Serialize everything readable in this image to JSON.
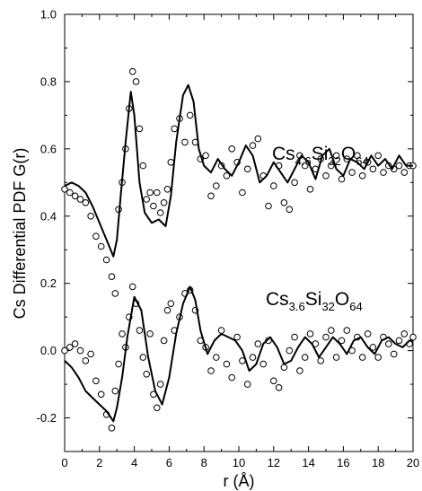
{
  "chart_data": {
    "type": "scatter",
    "title": "",
    "xlabel": "r (Å)",
    "ylabel": "Cs Differential PDF G(r)",
    "xlim": [
      0,
      20
    ],
    "ylim": [
      -0.3,
      1.0
    ],
    "xticks": [
      0,
      2,
      4,
      6,
      8,
      10,
      12,
      14,
      16,
      18,
      20
    ],
    "yticks": [
      -0.2,
      0.0,
      0.2,
      0.4,
      0.6,
      0.8,
      1.0
    ],
    "ytick_labels": [
      "-0.2",
      "0.0",
      "0.2",
      "0.4",
      "0.6",
      "0.8",
      "1.0"
    ],
    "grid": false,
    "legend": "none",
    "annotations": [
      {
        "base": "Cs",
        "sub1": "4.6",
        "mid": "Si",
        "sub2": "32",
        "end": "O",
        "sub3": "64"
      },
      {
        "base": "Cs",
        "sub1": "3.6",
        "mid": "Si",
        "sub2": "32",
        "end": "O",
        "sub3": "64"
      }
    ],
    "series": [
      {
        "style": "open-circles",
        "x": [
          0.0,
          0.3,
          0.6,
          0.9,
          1.2,
          1.5,
          1.8,
          2.1,
          2.4,
          2.7,
          2.9,
          3.1,
          3.3,
          3.5,
          3.7,
          3.9,
          4.1,
          4.3,
          4.5,
          4.7,
          4.9,
          5.1,
          5.3,
          5.5,
          5.7,
          5.9,
          6.1,
          6.3,
          6.6,
          6.9,
          7.2,
          7.5,
          7.8,
          8.1,
          8.4,
          8.7,
          9.0,
          9.3,
          9.6,
          9.9,
          10.2,
          10.5,
          10.8,
          11.1,
          11.4,
          11.7,
          12.0,
          12.3,
          12.6,
          12.9,
          13.2,
          13.5,
          13.8,
          14.1,
          14.4,
          14.7,
          15.0,
          15.3,
          15.6,
          15.9,
          16.2,
          16.5,
          16.8,
          17.1,
          17.4,
          17.7,
          18.0,
          18.3,
          18.6,
          18.9,
          19.2,
          19.5,
          19.8,
          20.0
        ],
        "y": [
          0.48,
          0.47,
          0.46,
          0.45,
          0.44,
          0.4,
          0.34,
          0.31,
          0.27,
          0.22,
          0.17,
          0.42,
          0.5,
          0.6,
          0.72,
          0.83,
          0.8,
          0.66,
          0.55,
          0.45,
          0.47,
          0.43,
          0.47,
          0.41,
          0.44,
          0.48,
          0.56,
          0.66,
          0.69,
          0.62,
          0.7,
          0.62,
          0.57,
          0.58,
          0.46,
          0.49,
          0.55,
          0.52,
          0.6,
          0.56,
          0.47,
          0.54,
          0.61,
          0.63,
          0.52,
          0.43,
          0.49,
          0.55,
          0.44,
          0.42,
          0.5,
          0.58,
          0.55,
          0.48,
          0.54,
          0.57,
          0.52,
          0.55,
          0.58,
          0.51,
          0.57,
          0.53,
          0.58,
          0.52,
          0.56,
          0.54,
          0.58,
          0.53,
          0.55,
          0.54,
          0.55,
          0.53,
          0.55,
          0.55
        ]
      },
      {
        "style": "solid-line",
        "x": [
          0.0,
          0.4,
          0.8,
          1.2,
          1.6,
          2.0,
          2.4,
          2.8,
          3.0,
          3.2,
          3.5,
          3.8,
          4.0,
          4.3,
          4.6,
          5.0,
          5.4,
          5.8,
          6.1,
          6.4,
          6.8,
          7.1,
          7.4,
          7.7,
          8.0,
          8.4,
          8.8,
          9.2,
          9.6,
          10.0,
          10.4,
          10.8,
          11.2,
          11.6,
          12.0,
          12.4,
          12.8,
          13.2,
          13.6,
          14.0,
          14.4,
          14.8,
          15.2,
          15.6,
          16.0,
          16.4,
          16.8,
          17.2,
          17.6,
          18.0,
          18.4,
          18.8,
          19.2,
          19.6,
          20.0
        ],
        "y": [
          0.49,
          0.5,
          0.49,
          0.47,
          0.43,
          0.38,
          0.33,
          0.28,
          0.33,
          0.45,
          0.62,
          0.77,
          0.7,
          0.5,
          0.41,
          0.38,
          0.39,
          0.37,
          0.46,
          0.62,
          0.76,
          0.79,
          0.74,
          0.6,
          0.55,
          0.53,
          0.57,
          0.54,
          0.52,
          0.56,
          0.61,
          0.58,
          0.5,
          0.52,
          0.56,
          0.53,
          0.5,
          0.54,
          0.58,
          0.56,
          0.51,
          0.58,
          0.6,
          0.54,
          0.52,
          0.57,
          0.56,
          0.54,
          0.58,
          0.55,
          0.57,
          0.54,
          0.58,
          0.55,
          0.55
        ]
      },
      {
        "style": "open-circles",
        "x": [
          0.0,
          0.3,
          0.6,
          0.9,
          1.2,
          1.5,
          1.8,
          2.1,
          2.4,
          2.7,
          2.9,
          3.1,
          3.3,
          3.5,
          3.7,
          3.9,
          4.1,
          4.3,
          4.5,
          4.7,
          4.9,
          5.1,
          5.3,
          5.5,
          5.7,
          5.9,
          6.1,
          6.3,
          6.6,
          6.9,
          7.2,
          7.5,
          7.8,
          8.1,
          8.4,
          8.7,
          9.0,
          9.3,
          9.6,
          9.9,
          10.2,
          10.5,
          10.8,
          11.1,
          11.4,
          11.7,
          12.0,
          12.3,
          12.6,
          12.9,
          13.2,
          13.5,
          13.8,
          14.1,
          14.4,
          14.7,
          15.0,
          15.3,
          15.6,
          15.9,
          16.2,
          16.5,
          16.8,
          17.1,
          17.4,
          17.7,
          18.0,
          18.3,
          18.6,
          18.9,
          19.2,
          19.5,
          19.8,
          20.0
        ],
        "y": [
          0.0,
          0.01,
          0.02,
          0.0,
          -0.03,
          -0.01,
          -0.09,
          -0.13,
          -0.19,
          -0.23,
          -0.12,
          -0.04,
          0.05,
          0.01,
          0.1,
          0.19,
          0.14,
          0.06,
          -0.02,
          -0.07,
          0.05,
          -0.13,
          -0.17,
          -0.1,
          0.03,
          0.12,
          0.14,
          0.06,
          0.1,
          0.17,
          0.18,
          0.12,
          0.03,
          0.01,
          -0.06,
          -0.02,
          0.06,
          -0.04,
          -0.08,
          0.04,
          -0.03,
          -0.1,
          -0.02,
          0.02,
          -0.04,
          0.03,
          -0.09,
          -0.11,
          -0.05,
          0.0,
          0.04,
          -0.06,
          -0.02,
          0.05,
          0.02,
          -0.03,
          0.04,
          0.06,
          -0.02,
          0.03,
          0.06,
          0.0,
          0.04,
          -0.02,
          0.05,
          0.01,
          -0.02,
          0.04,
          0.02,
          -0.01,
          0.03,
          0.05,
          0.02,
          0.04
        ]
      },
      {
        "style": "solid-line",
        "x": [
          0.0,
          0.4,
          0.8,
          1.2,
          1.6,
          2.0,
          2.4,
          2.8,
          3.0,
          3.3,
          3.6,
          4.0,
          4.4,
          4.8,
          5.2,
          5.6,
          6.0,
          6.4,
          6.8,
          7.2,
          7.5,
          7.8,
          8.2,
          8.6,
          9.0,
          9.4,
          9.8,
          10.2,
          10.6,
          11.0,
          11.4,
          11.8,
          12.2,
          12.6,
          13.0,
          13.4,
          13.8,
          14.2,
          14.6,
          15.0,
          15.4,
          15.8,
          16.2,
          16.6,
          17.0,
          17.4,
          17.8,
          18.2,
          18.6,
          19.0,
          19.4,
          19.8,
          20.0
        ],
        "y": [
          -0.03,
          -0.05,
          -0.08,
          -0.12,
          -0.14,
          -0.16,
          -0.18,
          -0.21,
          -0.17,
          -0.08,
          0.04,
          0.16,
          0.12,
          -0.02,
          -0.12,
          -0.16,
          -0.08,
          0.05,
          0.14,
          0.19,
          0.15,
          0.06,
          -0.01,
          0.03,
          0.05,
          0.04,
          0.03,
          0.0,
          -0.06,
          -0.04,
          0.02,
          0.04,
          0.01,
          -0.04,
          -0.03,
          0.01,
          0.04,
          0.02,
          -0.02,
          0.01,
          0.04,
          0.02,
          -0.01,
          0.03,
          0.04,
          0.01,
          -0.01,
          0.03,
          0.04,
          0.02,
          0.01,
          0.03,
          0.03
        ]
      }
    ]
  }
}
